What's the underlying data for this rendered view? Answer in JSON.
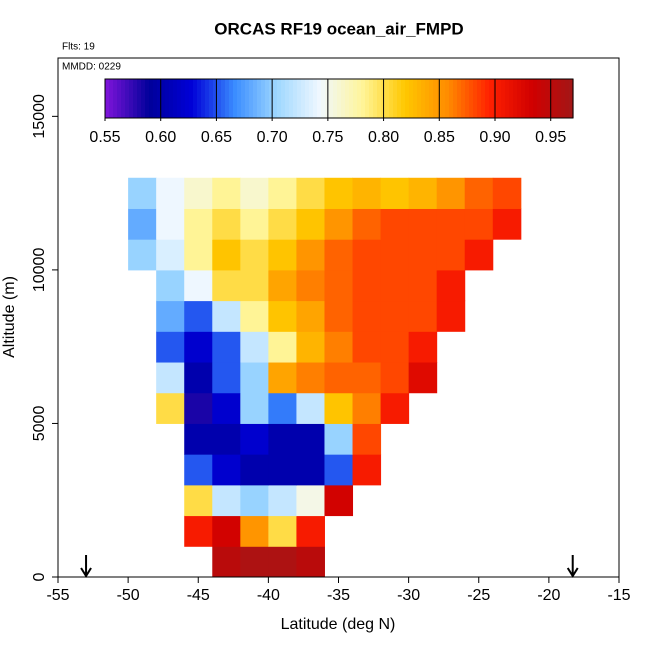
{
  "chart_data": {
    "type": "heatmap",
    "title": "ORCAS RF19 ocean_air_FMPD",
    "subtitle": "Flts: 19",
    "annotation": "MMDD: 0229",
    "x_label": "Latitude (deg N)",
    "y_label": "Altitude (m)",
    "xlim": [
      -55,
      -15
    ],
    "xticks": [
      -55,
      -50,
      -45,
      -40,
      -35,
      -30,
      -25,
      -20,
      -15
    ],
    "ylim": [
      0,
      16900
    ],
    "yticks": [
      0,
      5000,
      10000,
      15000
    ],
    "x_edges": [
      -52,
      -50,
      -48,
      -46,
      -44,
      -42,
      -40,
      -38,
      -36,
      -34,
      -32,
      -30,
      -28,
      -26,
      -24,
      -22
    ],
    "y_edges": [
      0,
      1000,
      2000,
      3000,
      4000,
      5000,
      6000,
      7000,
      8000,
      9000,
      10000,
      11000,
      12000,
      13000
    ],
    "z": [
      [
        null,
        null,
        null,
        null,
        0.95,
        0.96,
        0.96,
        0.95,
        null,
        null,
        null,
        null,
        null,
        null,
        null
      ],
      [
        null,
        null,
        null,
        0.9,
        0.93,
        0.85,
        0.8,
        0.9,
        null,
        null,
        null,
        null,
        null,
        null,
        null
      ],
      [
        null,
        null,
        null,
        0.8,
        0.72,
        0.7,
        0.72,
        0.75,
        0.93,
        null,
        null,
        null,
        null,
        null,
        null
      ],
      [
        null,
        null,
        null,
        0.65,
        0.62,
        0.6,
        0.6,
        0.6,
        0.65,
        0.9,
        null,
        null,
        null,
        null,
        null
      ],
      [
        null,
        null,
        null,
        0.6,
        0.6,
        0.62,
        0.6,
        0.6,
        0.7,
        0.88,
        null,
        null,
        null,
        null,
        null
      ],
      [
        null,
        null,
        0.8,
        0.58,
        0.62,
        0.7,
        0.66,
        0.72,
        0.82,
        0.86,
        0.9,
        null,
        null,
        null,
        null
      ],
      [
        null,
        null,
        0.72,
        0.6,
        0.65,
        0.7,
        0.84,
        0.86,
        0.87,
        0.87,
        0.88,
        0.92,
        null,
        null,
        null
      ],
      [
        null,
        null,
        0.65,
        0.62,
        0.65,
        0.72,
        0.78,
        0.83,
        0.86,
        0.88,
        0.88,
        0.9,
        null,
        null,
        null
      ],
      [
        null,
        null,
        0.68,
        0.65,
        0.72,
        0.78,
        0.82,
        0.84,
        0.87,
        0.88,
        0.88,
        0.88,
        0.9,
        null,
        null
      ],
      [
        null,
        null,
        0.7,
        0.74,
        0.8,
        0.8,
        0.84,
        0.86,
        0.87,
        0.88,
        0.88,
        0.88,
        0.9,
        null,
        null
      ],
      [
        null,
        0.7,
        0.73,
        0.78,
        0.82,
        0.8,
        0.82,
        0.85,
        0.87,
        0.88,
        0.88,
        0.88,
        0.88,
        0.9,
        null
      ],
      [
        null,
        0.68,
        0.74,
        0.78,
        0.8,
        0.78,
        0.8,
        0.82,
        0.85,
        0.87,
        0.88,
        0.88,
        0.88,
        0.88,
        0.9
      ],
      [
        null,
        0.7,
        0.74,
        0.76,
        0.78,
        0.76,
        0.78,
        0.8,
        0.82,
        0.83,
        0.82,
        0.83,
        0.85,
        0.87,
        0.88
      ]
    ],
    "clim": [
      0.55,
      0.97
    ],
    "cticks": [
      0.55,
      {
        "value": 0.6,
        "label": "0.60"
      },
      0.65,
      {
        "value": 0.7,
        "label": "0.70"
      },
      0.75,
      {
        "value": 0.8,
        "label": "0.80"
      },
      0.85,
      {
        "value": 0.9,
        "label": "0.90"
      },
      0.95
    ],
    "colorscale": [
      "#7b14d8",
      "#00009a",
      "#0000d8",
      "#3a8cff",
      "#9fd8ff",
      "#f0f8ff",
      "#fff59a",
      "#ffc800",
      "#ff8c00",
      "#ff2000",
      "#d00000",
      "#a01818"
    ],
    "arrows": [
      -53,
      -18.3
    ]
  }
}
